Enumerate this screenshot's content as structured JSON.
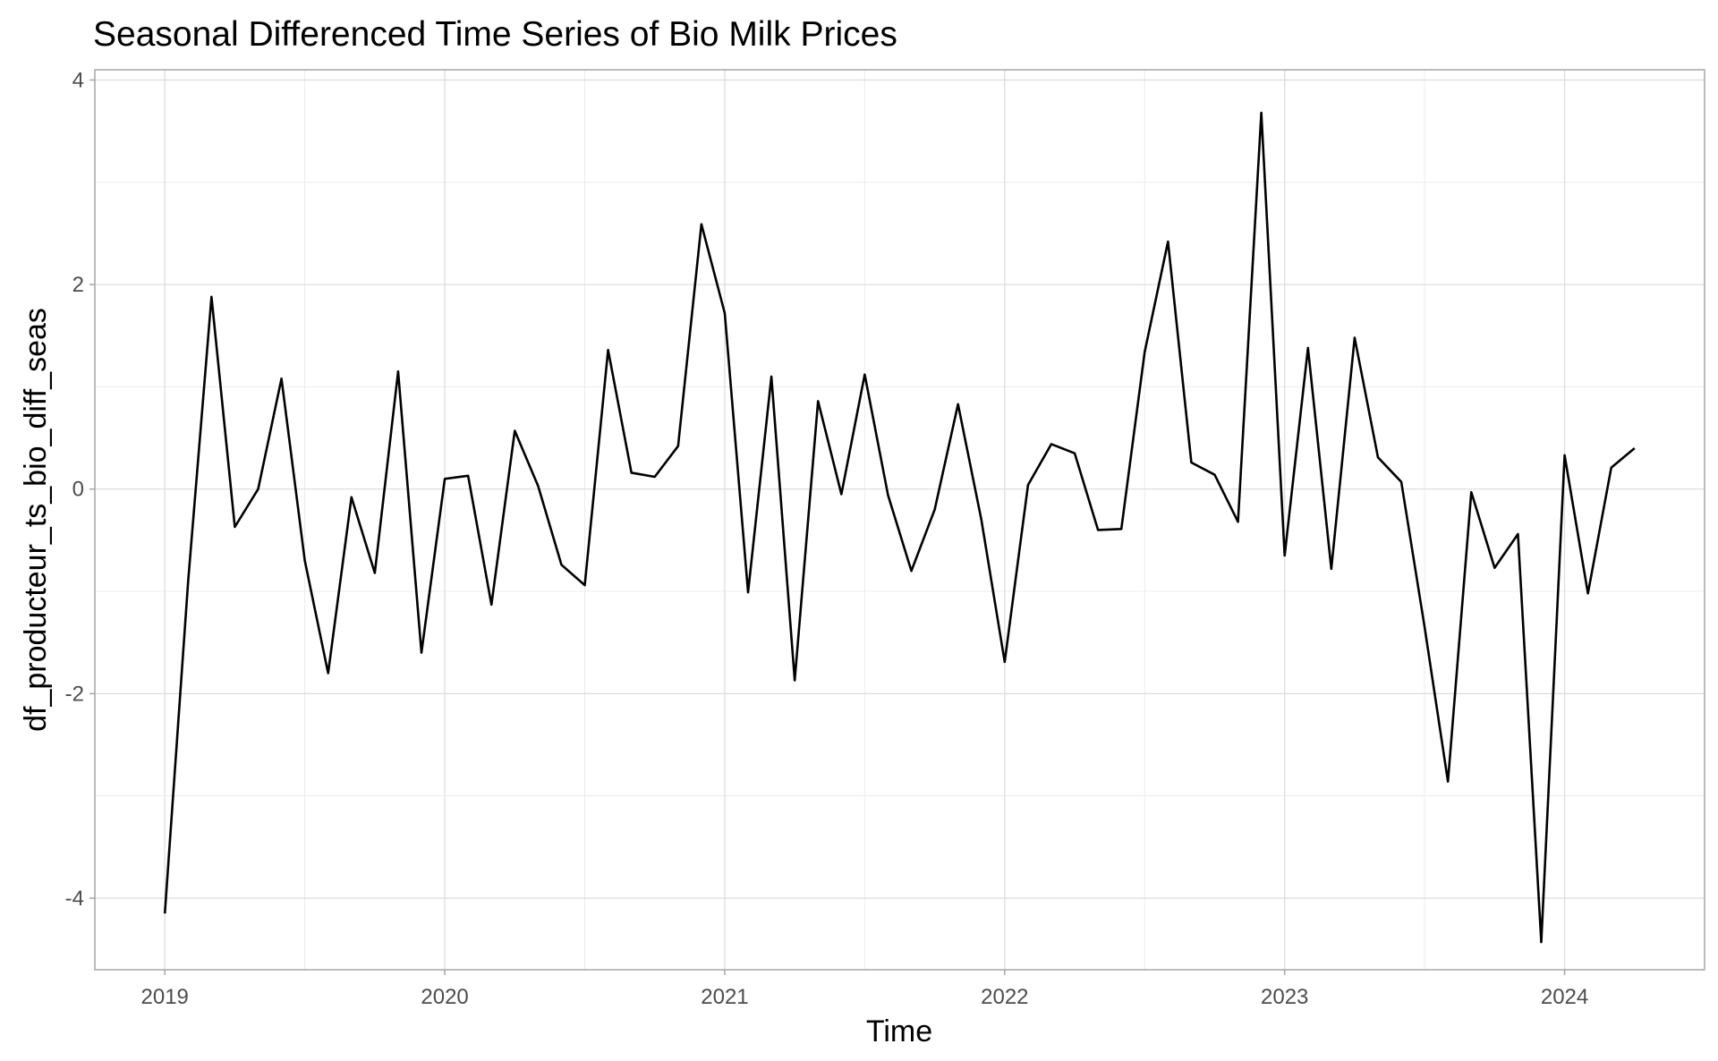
{
  "chart_data": {
    "type": "line",
    "title": "Seasonal Differenced Time Series of Bio Milk Prices",
    "xlabel": "Time",
    "ylabel": "df_producteur_ts_bio_diff_seas",
    "xlim": [
      2018.75,
      2024.5
    ],
    "ylim": [
      -4.7,
      4.1
    ],
    "x_ticks": [
      2019,
      2020,
      2021,
      2022,
      2023,
      2024
    ],
    "x_tick_labels": [
      "2019",
      "2020",
      "2021",
      "2022",
      "2023",
      "2024"
    ],
    "y_ticks": [
      -4,
      -2,
      0,
      2,
      4
    ],
    "y_tick_labels": [
      "-4",
      "-2",
      "0",
      "2",
      "4"
    ],
    "grid": true,
    "legend": "none",
    "line_color": "#000000",
    "series": [
      {
        "x_start": 2019,
        "frequency": 12,
        "values": [
          -4.15,
          -0.9,
          1.88,
          -0.37,
          0.0,
          1.08,
          -0.7,
          -1.8,
          -0.08,
          -0.82,
          1.15,
          -1.6,
          0.1,
          0.13,
          -1.13,
          0.57,
          0.03,
          -0.74,
          -0.94,
          1.36,
          0.16,
          0.12,
          0.42,
          2.59,
          1.72,
          -1.01,
          1.1,
          -1.87,
          0.86,
          -0.05,
          1.12,
          -0.06,
          -0.8,
          -0.2,
          0.83,
          -0.3,
          -1.69,
          0.04,
          0.44,
          0.35,
          -0.4,
          -0.39,
          1.34,
          2.42,
          0.26,
          0.14,
          -0.32,
          3.68,
          -0.65,
          1.38,
          -0.78,
          1.48,
          0.31,
          0.07,
          -1.35,
          -2.86,
          -0.03,
          -0.77,
          -0.44,
          -4.43,
          0.33,
          -1.02,
          0.21,
          0.4
        ]
      }
    ]
  }
}
